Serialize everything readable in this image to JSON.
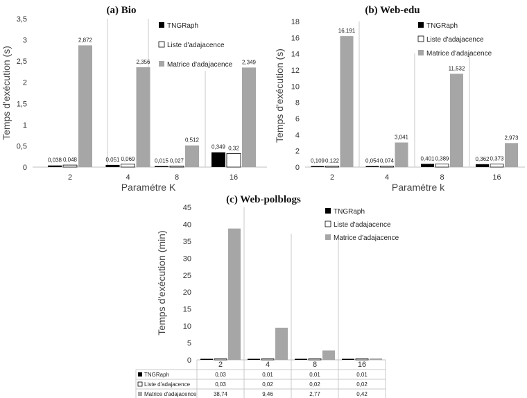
{
  "colors": {
    "tngraph": "#000000",
    "liste": "#ffffff",
    "matrice": "#a6a6a6",
    "grid": "#c8c8c8",
    "axis": "#bfbfbf"
  },
  "legend": [
    "TNGRaph",
    "Liste d'adajacence",
    "Matrice d'adajacence"
  ],
  "chart_data": [
    {
      "type": "bar",
      "title": "(a) Bio",
      "xlabel": "Paramétre K",
      "ylabel": "Temps d'exécution (s)",
      "categories": [
        "2",
        "4",
        "8",
        "16"
      ],
      "ylim": [
        0,
        3.5
      ],
      "yticks": [
        "0",
        "0,5",
        "1",
        "1,5",
        "2",
        "2,5",
        "3",
        "3,5"
      ],
      "series": [
        {
          "name": "TNGRaph",
          "values": [
            0.038,
            0.051,
            0.015,
            0.349
          ],
          "labels": [
            "0,038",
            "0,051",
            "0,015",
            "0,349"
          ]
        },
        {
          "name": "Liste d'adajacence",
          "values": [
            0.048,
            0.069,
            0.027,
            0.32
          ],
          "labels": [
            "0,048",
            "0,069",
            "0,027",
            "0,32"
          ]
        },
        {
          "name": "Matrice d'adajacence",
          "values": [
            2.872,
            2.356,
            0.512,
            2.349
          ],
          "labels": [
            "2,872",
            "2,356",
            "0,512",
            "2,349"
          ]
        }
      ],
      "legend_position": "top-right"
    },
    {
      "type": "bar",
      "title": "(b) Web-edu",
      "xlabel": "Paramétre k",
      "ylabel": "Temps d'exécution (s)",
      "categories": [
        "2",
        "4",
        "8",
        "16"
      ],
      "ylim": [
        0,
        18
      ],
      "yticks": [
        "0",
        "2",
        "4",
        "6",
        "8",
        "10",
        "12",
        "14",
        "16",
        "18"
      ],
      "series": [
        {
          "name": "TNGRaph",
          "values": [
            0.109,
            0.054,
            0.401,
            0.362
          ],
          "labels": [
            "0,109",
            "0,054",
            "0,401",
            "0,362"
          ]
        },
        {
          "name": "Liste d'adajacence",
          "values": [
            0.122,
            0.074,
            0.389,
            0.373
          ],
          "labels": [
            "0,122",
            "0,074",
            "0,389",
            "0,373"
          ]
        },
        {
          "name": "Matrice d'adajacence",
          "values": [
            16.191,
            3.041,
            11.532,
            2.973
          ],
          "labels": [
            "16,191",
            "3,041",
            "11,532",
            "2,973"
          ]
        }
      ],
      "legend_position": "top-right"
    },
    {
      "type": "bar",
      "title": "(c) Web-polblogs",
      "xlabel": "",
      "ylabel": "Temps d'exécution (min)",
      "categories": [
        "2",
        "4",
        "8",
        "16"
      ],
      "ylim": [
        0,
        45
      ],
      "yticks": [
        "0",
        "5",
        "10",
        "15",
        "20",
        "25",
        "30",
        "35",
        "40",
        "45"
      ],
      "series": [
        {
          "name": "TNGRaph",
          "values": [
            0.03,
            0.01,
            0.01,
            0.01
          ],
          "labels": [
            "0,03",
            "0,01",
            "0,01",
            "0,01"
          ]
        },
        {
          "name": "Liste d'adajacence",
          "values": [
            0.03,
            0.02,
            0.02,
            0.02
          ],
          "labels": [
            "0,03",
            "0,02",
            "0,02",
            "0,02"
          ]
        },
        {
          "name": "Matrice d'adajacence",
          "values": [
            38.74,
            9.46,
            2.77,
            0.42
          ],
          "labels": [
            "38,74",
            "9,46",
            "2,77",
            "0,42"
          ]
        }
      ],
      "legend_position": "top-right",
      "data_table": true
    }
  ]
}
